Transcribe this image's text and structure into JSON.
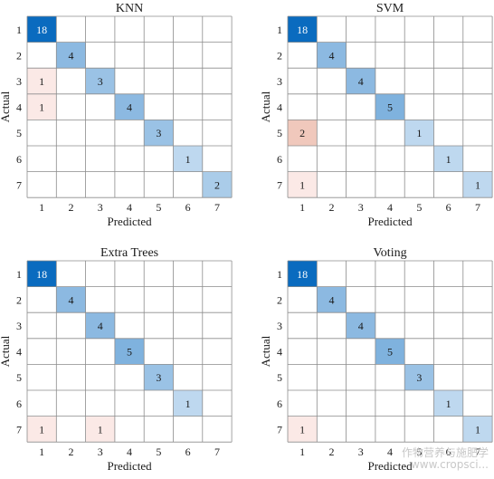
{
  "figure": {
    "watermark_line1": "作物营养与施肥学",
    "watermark_line2": "www.cropsci..."
  },
  "colors": {
    "background": "#ffffff",
    "grid": "#8c8c8c",
    "correct_scale_high": "#0a6bbf",
    "correct_scale_low": "#e4eff9",
    "error_scale_high": "#f0c8bc",
    "error_scale_low": "#fbe9e6"
  },
  "chart_data": [
    {
      "type": "heatmap",
      "title": "KNN",
      "xlabel": "Predicted",
      "ylabel": "Actual",
      "classes": [
        "1",
        "2",
        "3",
        "4",
        "5",
        "6",
        "7"
      ],
      "cells": [
        {
          "actual": "1",
          "predicted": "1",
          "value": 18
        },
        {
          "actual": "2",
          "predicted": "2",
          "value": 4
        },
        {
          "actual": "3",
          "predicted": "1",
          "value": 1
        },
        {
          "actual": "3",
          "predicted": "3",
          "value": 3
        },
        {
          "actual": "4",
          "predicted": "1",
          "value": 1
        },
        {
          "actual": "4",
          "predicted": "4",
          "value": 4
        },
        {
          "actual": "5",
          "predicted": "5",
          "value": 3
        },
        {
          "actual": "6",
          "predicted": "6",
          "value": 1
        },
        {
          "actual": "7",
          "predicted": "7",
          "value": 2
        }
      ]
    },
    {
      "type": "heatmap",
      "title": "SVM",
      "xlabel": "Predicted",
      "ylabel": "Actual",
      "classes": [
        "1",
        "2",
        "3",
        "4",
        "5",
        "6",
        "7"
      ],
      "cells": [
        {
          "actual": "1",
          "predicted": "1",
          "value": 18
        },
        {
          "actual": "2",
          "predicted": "2",
          "value": 4
        },
        {
          "actual": "3",
          "predicted": "3",
          "value": 4
        },
        {
          "actual": "4",
          "predicted": "4",
          "value": 5
        },
        {
          "actual": "5",
          "predicted": "1",
          "value": 2
        },
        {
          "actual": "5",
          "predicted": "5",
          "value": 1
        },
        {
          "actual": "6",
          "predicted": "6",
          "value": 1
        },
        {
          "actual": "7",
          "predicted": "1",
          "value": 1
        },
        {
          "actual": "7",
          "predicted": "7",
          "value": 1
        }
      ]
    },
    {
      "type": "heatmap",
      "title": "Extra Trees",
      "xlabel": "Predicted",
      "ylabel": "Actual",
      "classes": [
        "1",
        "2",
        "3",
        "4",
        "5",
        "6",
        "7"
      ],
      "cells": [
        {
          "actual": "1",
          "predicted": "1",
          "value": 18
        },
        {
          "actual": "2",
          "predicted": "2",
          "value": 4
        },
        {
          "actual": "3",
          "predicted": "3",
          "value": 4
        },
        {
          "actual": "4",
          "predicted": "4",
          "value": 5
        },
        {
          "actual": "5",
          "predicted": "5",
          "value": 3
        },
        {
          "actual": "6",
          "predicted": "6",
          "value": 1
        },
        {
          "actual": "7",
          "predicted": "1",
          "value": 1
        },
        {
          "actual": "7",
          "predicted": "3",
          "value": 1
        }
      ]
    },
    {
      "type": "heatmap",
      "title": "Voting",
      "xlabel": "Predicted",
      "ylabel": "Actual",
      "classes": [
        "1",
        "2",
        "3",
        "4",
        "5",
        "6",
        "7"
      ],
      "cells": [
        {
          "actual": "1",
          "predicted": "1",
          "value": 18
        },
        {
          "actual": "2",
          "predicted": "2",
          "value": 4
        },
        {
          "actual": "3",
          "predicted": "3",
          "value": 4
        },
        {
          "actual": "4",
          "predicted": "4",
          "value": 5
        },
        {
          "actual": "5",
          "predicted": "5",
          "value": 3
        },
        {
          "actual": "6",
          "predicted": "6",
          "value": 1
        },
        {
          "actual": "7",
          "predicted": "1",
          "value": 1
        },
        {
          "actual": "7",
          "predicted": "7",
          "value": 1
        }
      ]
    }
  ]
}
